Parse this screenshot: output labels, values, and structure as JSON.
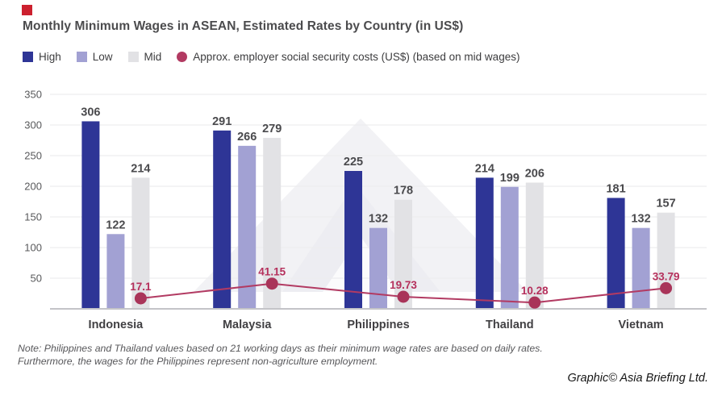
{
  "brand": {
    "logo_color": "#cc202e",
    "credit": "Graphic© Asia Briefing Ltd."
  },
  "title": "Monthly Minimum Wages in ASEAN, Estimated Rates by Country (in US$)",
  "note": {
    "line1": "Note: Philippines and Thailand values based on 21 working days as their minimum wage rates are based on daily rates.",
    "line2": "Furthermore, the wages for the Philippines represent non-agriculture employment."
  },
  "chart_data": {
    "type": "bar",
    "title": "Monthly Minimum Wages in ASEAN, Estimated Rates by Country (in US$)",
    "categories": [
      "Indonesia",
      "Malaysia",
      "Philippines",
      "Thailand",
      "Vietnam"
    ],
    "series": [
      {
        "name": "High",
        "type": "bar",
        "color": "#2e3596",
        "values": [
          306,
          291,
          225,
          214,
          181
        ]
      },
      {
        "name": "Low",
        "type": "bar",
        "color": "#a2a1d3",
        "values": [
          122,
          266,
          132,
          199,
          132
        ]
      },
      {
        "name": "Mid",
        "type": "bar",
        "color": "#e2e2e5",
        "values": [
          214,
          279,
          178,
          206,
          157
        ]
      },
      {
        "name": "Approx. employer social security costs (US$) (based on mid wages)",
        "type": "line",
        "color": "#b23a62",
        "values": [
          17.1,
          41.15,
          19.73,
          10.28,
          33.79
        ]
      }
    ],
    "xlabel": "",
    "ylabel": "",
    "ylim": [
      0,
      350
    ],
    "yticks": [
      50,
      100,
      150,
      200,
      250,
      300,
      350
    ],
    "grid": true,
    "legend_position": "top",
    "colors": {
      "bar_value_label": "#4a4a4d",
      "line_value_label": "#b5305c",
      "axis_tick_label": "#58595b",
      "category_label": "#414043",
      "gridline": "#ededef",
      "baseline": "#c4c4c8"
    }
  }
}
